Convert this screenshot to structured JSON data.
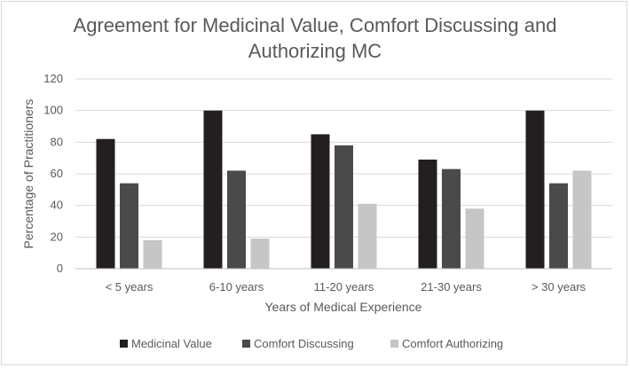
{
  "chart_data": {
    "type": "bar",
    "title": "Agreement for Medicinal Value, Comfort Discussing and Authorizing MC",
    "xlabel": "Years of Medical Experience",
    "ylabel": "Percentage of Practitioners",
    "categories": [
      "< 5 years",
      "6-10 years",
      "11-20 years",
      "21-30 years",
      "> 30 years"
    ],
    "series": [
      {
        "name": "Medicinal Value",
        "values": [
          82,
          100,
          85,
          69,
          100
        ],
        "color": "#231f20"
      },
      {
        "name": "Comfort Discussing",
        "values": [
          54,
          62,
          78,
          63,
          54
        ],
        "color": "#4a4a4a"
      },
      {
        "name": "Comfort Authorizing",
        "values": [
          18,
          19,
          41,
          38,
          62
        ],
        "color": "#c6c6c6"
      }
    ],
    "ylim": [
      0,
      120
    ],
    "yticks": [
      0,
      20,
      40,
      60,
      80,
      100,
      120
    ],
    "grid": true,
    "legend": "bottom"
  }
}
